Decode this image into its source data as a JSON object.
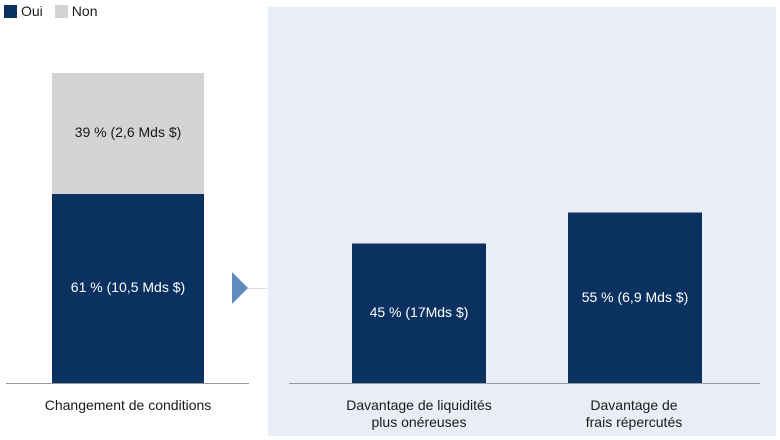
{
  "legend": [
    {
      "label": "Oui",
      "color": "#0b3160"
    },
    {
      "label": "Non",
      "color": "#d3d3d3"
    }
  ],
  "colors": {
    "oui": "#0b3160",
    "non": "#d3d3d3",
    "panel_bg": "#e9edf5",
    "arrow": "#5e8bc2",
    "axis": "#9a9a9a"
  },
  "chart_data": [
    {
      "type": "bar",
      "stacked": true,
      "categories": [
        "Changement de conditions"
      ],
      "series": [
        {
          "name": "Oui",
          "values": [
            61
          ],
          "labels": [
            "61 % (10,5 Mds $)"
          ]
        },
        {
          "name": "Non",
          "values": [
            39
          ],
          "labels": [
            "39 % (2,6 Mds $)"
          ]
        }
      ],
      "ylim": [
        0,
        100
      ],
      "legend_position": "top-left"
    },
    {
      "type": "bar",
      "categories": [
        "Davantage de liquidités plus onéreuses",
        "Davantage de frais répercutés"
      ],
      "category_lines": [
        [
          "Davantage de liquidités",
          "plus onéreuses"
        ],
        [
          "Davantage de",
          "frais répercutés"
        ]
      ],
      "series": [
        {
          "name": "Oui",
          "values": [
            45,
            55
          ],
          "labels": [
            "45 % (17Mds $)",
            "55 % (6,9 Mds $)"
          ]
        }
      ],
      "ylim": [
        0,
        100
      ]
    }
  ]
}
